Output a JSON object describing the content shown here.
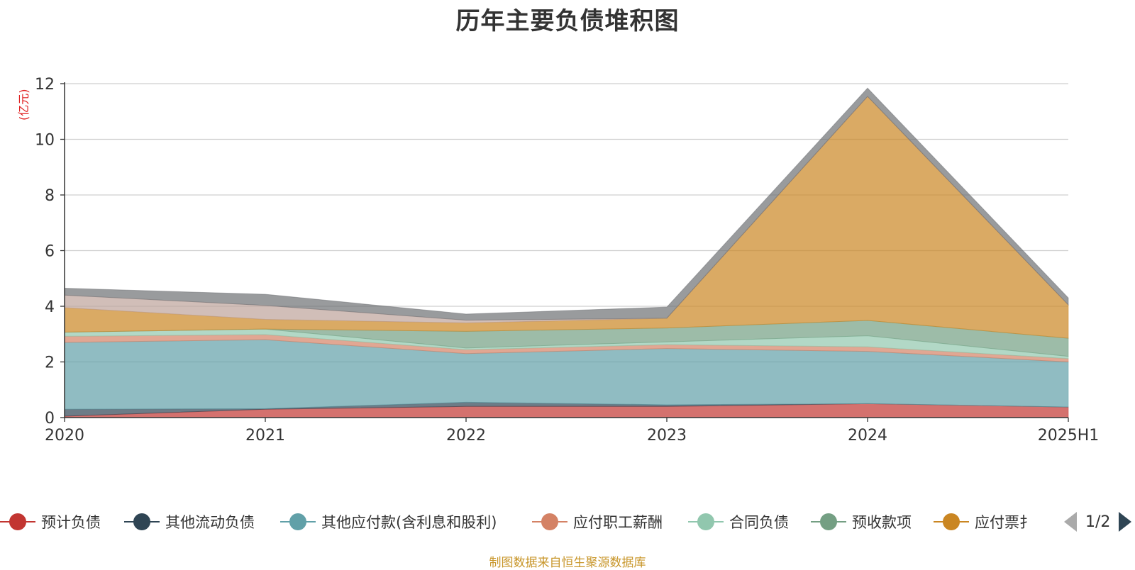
{
  "title": "历年主要负债堆积图",
  "unit_label": "(亿元)",
  "source_note": "制图数据来自恒生聚源数据库",
  "legend": {
    "items": [
      {
        "name": "预计负债",
        "color": "#c23531"
      },
      {
        "name": "其他流动负债",
        "color": "#2f4554"
      },
      {
        "name": "其他应付款(含利息和股利)",
        "color": "#61a0a8"
      },
      {
        "name": "应付职工薪酬",
        "color": "#d48265"
      },
      {
        "name": "合同负债",
        "color": "#91c7ae"
      },
      {
        "name": "预收款项",
        "color": "#749f83"
      },
      {
        "name": "应付票据",
        "visible_text": "应付票扌",
        "color": "#ca8622"
      }
    ],
    "page_indicator": "1/2"
  },
  "chart_data": {
    "type": "area",
    "stacked": true,
    "title": "历年主要负债堆积图",
    "ylabel": "(亿元)",
    "x": [
      "2020",
      "2021",
      "2022",
      "2023",
      "2024",
      "2025H1"
    ],
    "ylim": [
      0,
      12
    ],
    "yticks": [
      0,
      2,
      4,
      6,
      8,
      10,
      12
    ],
    "grid": true,
    "legend_position": "bottom",
    "series": [
      {
        "name": "预计负债",
        "color": "#c23531",
        "values": [
          0.05,
          0.3,
          0.4,
          0.4,
          0.5,
          0.38
        ]
      },
      {
        "name": "其他流动负债",
        "color": "#2f4554",
        "values": [
          0.25,
          0.02,
          0.15,
          0.06,
          0.0,
          0.0
        ]
      },
      {
        "name": "其他应付款(含利息和股利)",
        "color": "#61a0a8",
        "values": [
          2.4,
          2.48,
          1.75,
          2.02,
          1.88,
          1.62
        ]
      },
      {
        "name": "应付职工薪酬",
        "color": "#d48265",
        "values": [
          0.22,
          0.18,
          0.14,
          0.14,
          0.16,
          0.12
        ]
      },
      {
        "name": "合同负债",
        "color": "#91c7ae",
        "values": [
          0.15,
          0.2,
          0.06,
          0.1,
          0.4,
          0.08
        ]
      },
      {
        "name": "预收款项",
        "color": "#749f83",
        "values": [
          0.0,
          0.0,
          0.6,
          0.5,
          0.55,
          0.65
        ]
      },
      {
        "name": "应付票据",
        "color": "#ca8622",
        "values": [
          0.88,
          0.35,
          0.3,
          0.35,
          8.05,
          1.2
        ]
      },
      {
        "name": "",
        "color": "#bda29a",
        "values": [
          0.45,
          0.5,
          0.1,
          0.0,
          0.0,
          0.0
        ]
      },
      {
        "name": "",
        "color": "#6e7074",
        "values": [
          0.25,
          0.4,
          0.22,
          0.4,
          0.3,
          0.25
        ]
      }
    ]
  }
}
